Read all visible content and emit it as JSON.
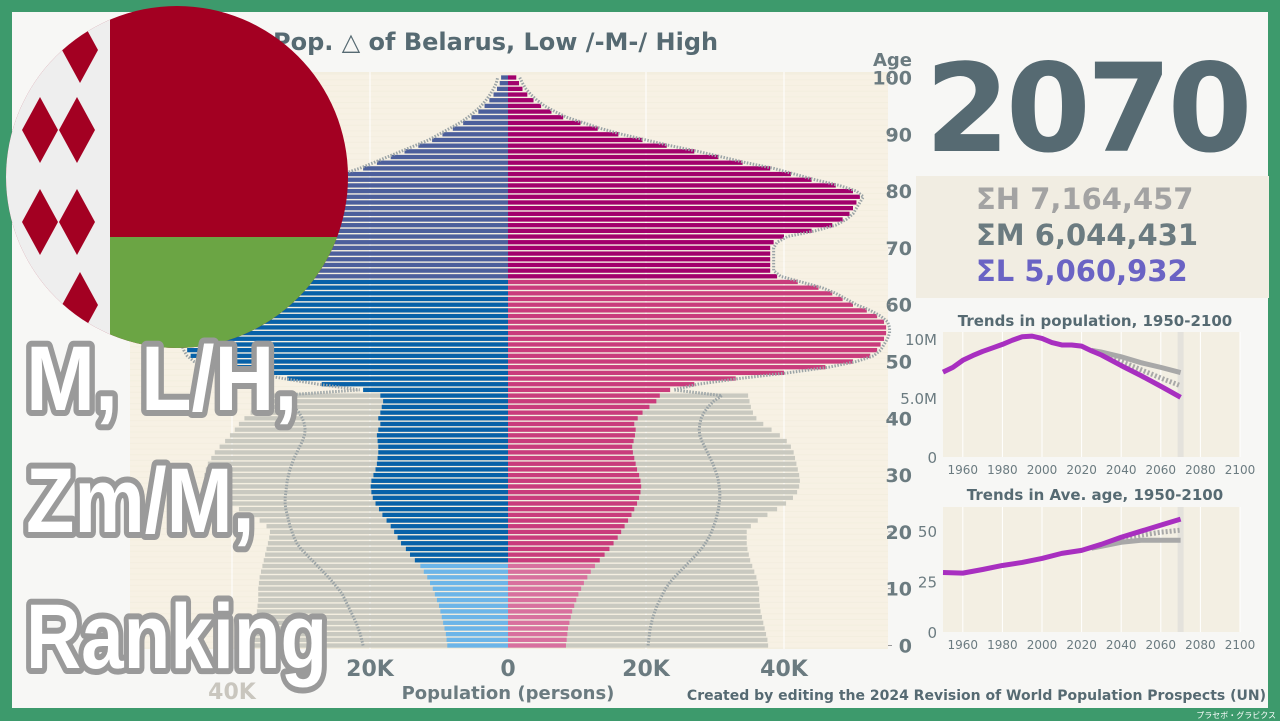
{
  "title": "Pop. △ of Belarus, Low /-M-/ High",
  "year": "2070",
  "sums": [
    {
      "label": "ΣH",
      "value": "7,164,457",
      "color": "#a3a3a3"
    },
    {
      "label": "ΣM",
      "value": "6,044,431",
      "color": "#6b7b80"
    },
    {
      "label": "ΣL",
      "value": "5,060,932",
      "color": "#6a63c4"
    }
  ],
  "overlay_text": [
    "M, L/H,",
    "Zm/M,",
    "Ranking"
  ],
  "credit": "Created by editing the 2024 Revision of World Population Prospects (UN)",
  "watermark": "プラセボ・グラビクス",
  "flag": {
    "country": "Belarus",
    "red": "#a30022",
    "green": "#6ba544",
    "white": "#eeeeee"
  },
  "colors": {
    "male_young": "#6cb5e8",
    "male_working": "#0761a8",
    "male_old": "#4c5f9c",
    "female_young": "#d8709e",
    "female_working": "#c93c7c",
    "female_old": "#a2006c",
    "high": "#c9c9c0",
    "medium": "#9aa3a6",
    "trend_low": "#a82fc0",
    "trend_other": "#a8a8a8"
  },
  "chart_data": [
    {
      "type": "bar",
      "subtype": "population-pyramid",
      "title": "Pop. △ of Belarus, Low /-M-/ High",
      "xlabel": "Population (persons)",
      "ylabel": "Age",
      "xlim": [
        -55000,
        55000
      ],
      "ylim": [
        0,
        100
      ],
      "x_tick_labels": [
        "40K",
        "20K",
        "0",
        "20K",
        "40K"
      ],
      "y_tick_labels": [
        "0",
        "10",
        "20",
        "30",
        "40",
        "50",
        "60",
        "70",
        "80",
        "90",
        "100"
      ],
      "age_groups": {
        "young": [
          0,
          14
        ],
        "working": [
          15,
          64
        ],
        "old": [
          65,
          100
        ]
      },
      "units": "thousand persons per single year of age, ages 0 upward",
      "low_male": [
        8.8,
        8.9,
        9.0,
        9.2,
        9.4,
        9.6,
        9.8,
        10.0,
        10.3,
        10.6,
        10.9,
        11.3,
        11.7,
        12.2,
        12.7,
        13.5,
        14.2,
        14.8,
        15.5,
        16.0,
        16.5,
        17.0,
        17.6,
        18.2,
        18.7,
        19.2,
        19.6,
        19.8,
        19.9,
        19.8,
        19.5,
        19.2,
        19.0,
        18.9,
        18.8,
        18.8,
        18.9,
        19.0,
        18.8,
        18.5,
        18.8,
        18.5,
        18.3,
        18.1,
        18.5,
        21.0,
        27.0,
        32.0,
        37.0,
        42.0,
        45.0,
        46.0,
        46.5,
        46.8,
        47.0,
        47.0,
        47.0,
        46.8,
        46.5,
        46.0,
        45.5,
        45.0,
        44.0,
        43.0,
        42.0,
        38,
        37,
        36.5,
        36,
        36,
        36,
        36.5,
        37,
        37.5,
        38,
        38,
        37.5,
        37,
        36,
        34,
        32,
        29,
        26,
        23.5,
        21,
        19,
        17,
        15,
        13,
        11,
        9.5,
        8,
        6.5,
        5.3,
        4.3,
        3.4,
        2.7,
        2.1,
        1.6,
        1.2,
        1.0
      ],
      "low_female": [
        8.4,
        8.5,
        8.6,
        8.7,
        8.9,
        9.1,
        9.3,
        9.6,
        9.9,
        10.2,
        10.6,
        11.0,
        11.5,
        12.0,
        12.6,
        13.3,
        14.0,
        14.7,
        15.3,
        15.9,
        16.4,
        16.9,
        17.4,
        17.9,
        18.3,
        18.7,
        19.0,
        19.2,
        19.3,
        19.2,
        19.0,
        18.7,
        18.5,
        18.3,
        18.1,
        18.0,
        18.2,
        18.4,
        18.5,
        18.3,
        18.8,
        19.5,
        20.5,
        21.5,
        22.0,
        23.5,
        27.0,
        33.0,
        40.0,
        46.0,
        50.0,
        52.5,
        53.5,
        54.0,
        54.5,
        54.8,
        54.8,
        54.5,
        53.5,
        52.0,
        50.0,
        48.5,
        47.0,
        45.0,
        42.0,
        39,
        38,
        38,
        38,
        38,
        38,
        38.5,
        40,
        44,
        47,
        48.5,
        49.5,
        50,
        50.5,
        51,
        50,
        47.5,
        44,
        41,
        38,
        34,
        30.5,
        27,
        23,
        19.5,
        16,
        13,
        10.5,
        8,
        6.3,
        4.8,
        3.7,
        2.8,
        2.1,
        1.6,
        1.2
      ],
      "medium_male": [
        21,
        21.2,
        21.4,
        21.7,
        22,
        22.4,
        22.8,
        23.2,
        23.6,
        24,
        24.6,
        25.3,
        26,
        26.8,
        27.6,
        28.4,
        29.2,
        30,
        30.6,
        31,
        31.3,
        31.6,
        31.8,
        32,
        32.2,
        32.3,
        32.3,
        32.2,
        32.1,
        32,
        31.8,
        31.6,
        31.3,
        31,
        30.6,
        30.2,
        29.8,
        29.5,
        29.4,
        29.5,
        29.8,
        30.3,
        31,
        32,
        33.5
      ],
      "medium_female": [
        20.3,
        20.4,
        20.5,
        20.6,
        20.8,
        21,
        21.3,
        21.6,
        22,
        22.4,
        22.8,
        23.4,
        24.1,
        24.9,
        25.7,
        26.5,
        27.3,
        28,
        28.6,
        29.1,
        29.5,
        29.8,
        30.1,
        30.3,
        30.5,
        30.6,
        30.7,
        30.7,
        30.6,
        30.5,
        30.3,
        30,
        29.7,
        29.3,
        28.9,
        28.5,
        28.1,
        27.8,
        27.7,
        27.8,
        28,
        28.4,
        29,
        29.8,
        31
      ],
      "high_male": [
        37.4,
        37.2,
        37,
        36.8,
        36.6,
        36.5,
        36.4,
        36.3,
        36.2,
        36.2,
        36.2,
        36.1,
        36,
        35.8,
        35.6,
        35.4,
        35.2,
        35,
        34.8,
        34.6,
        34.5,
        35,
        36,
        37.5,
        39,
        40.5,
        42,
        43,
        43.7,
        44,
        44,
        43.8,
        43.5,
        43,
        42.5,
        41.8,
        41,
        40.3,
        39.6,
        39,
        38.2,
        37.3,
        36.3,
        35.3,
        34.5
      ],
      "high_female": [
        37.7,
        37.6,
        37.4,
        37.2,
        37,
        36.8,
        36.6,
        36.5,
        36.4,
        36.4,
        36.4,
        36.2,
        36,
        35.7,
        35.4,
        35.1,
        34.9,
        34.7,
        34.6,
        34.6,
        34.6,
        35.2,
        36.2,
        37.6,
        39,
        40.3,
        41.3,
        41.9,
        42.2,
        42.3,
        42.2,
        42,
        41.8,
        41.6,
        41.4,
        41,
        40.4,
        39.4,
        38.2,
        37,
        36,
        35.5,
        35.2,
        35,
        34.8
      ]
    },
    {
      "type": "line",
      "title": "Trends in population, 1950-2100",
      "xlim": [
        1950,
        2100
      ],
      "ylim": [
        0,
        10600000
      ],
      "x_tick_labels": [
        "1960",
        "1980",
        "2000",
        "2020",
        "2040",
        "2060",
        "2080",
        "2100"
      ],
      "y_tick_labels": [
        "0",
        "5.0M",
        "10M"
      ],
      "current_year": 2070,
      "low": {
        "x": [
          1950,
          1955,
          1960,
          1965,
          1970,
          1975,
          1980,
          1985,
          1990,
          1995,
          2000,
          2005,
          2010,
          2015,
          2020,
          2025,
          2030,
          2040,
          2050,
          2060,
          2070
        ],
        "y": [
          7.2,
          7.6,
          8.2,
          8.6,
          8.95,
          9.25,
          9.55,
          9.9,
          10.2,
          10.25,
          10.05,
          9.7,
          9.5,
          9.5,
          9.4,
          9.0,
          8.65,
          7.75,
          6.9,
          6.0,
          5.06
        ]
      },
      "medium": {
        "x": [
          2025,
          2030,
          2040,
          2050,
          2060,
          2070
        ],
        "y": [
          9.0,
          8.75,
          8.1,
          7.4,
          6.7,
          6.04
        ]
      },
      "high": {
        "x": [
          2025,
          2030,
          2040,
          2050,
          2060,
          2070
        ],
        "y": [
          9.05,
          8.9,
          8.5,
          8.0,
          7.6,
          7.16
        ]
      },
      "y_unit": "million"
    },
    {
      "type": "line",
      "title": "Trends in Ave. age, 1950-2100",
      "xlim": [
        1950,
        2100
      ],
      "ylim": [
        0,
        62
      ],
      "x_tick_labels": [
        "1960",
        "1980",
        "2000",
        "2020",
        "2040",
        "2060",
        "2080",
        "2100"
      ],
      "y_tick_labels": [
        "0",
        "25",
        "50"
      ],
      "current_year": 2070,
      "low": {
        "x": [
          1950,
          1960,
          1970,
          1980,
          1990,
          2000,
          2010,
          2020,
          2030,
          2040,
          2050,
          2060,
          2070
        ],
        "y": [
          29.5,
          29.2,
          31,
          33,
          34.5,
          36.5,
          39,
          40.5,
          43.5,
          47,
          50,
          53,
          56
        ]
      },
      "medium": {
        "x": [
          2025,
          2030,
          2040,
          2050,
          2060,
          2070
        ],
        "y": [
          41.8,
          43,
          46,
          48,
          49.5,
          50.5
        ]
      },
      "high": {
        "x": [
          2025,
          2030,
          2040,
          2050,
          2060,
          2070
        ],
        "y": [
          41.6,
          42.5,
          44.5,
          45.5,
          45.5,
          45.5
        ]
      }
    }
  ]
}
